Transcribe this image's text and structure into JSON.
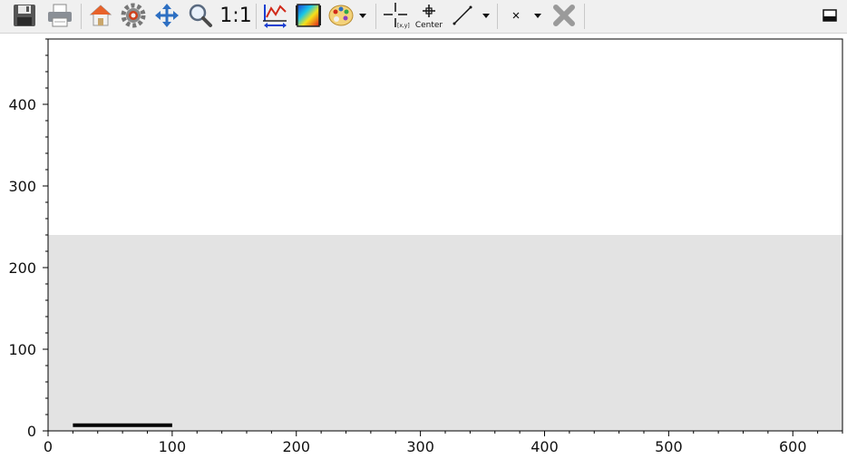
{
  "toolbar": {
    "zoom_ratio_label": "1:1",
    "center_label": "Center",
    "crosshair_coord_label": "[x,y]",
    "icons": [
      "save-icon",
      "print-icon",
      "home-icon",
      "settings-icon",
      "pan-icon",
      "zoom-icon",
      "zoom-ratio",
      "curve-properties-icon",
      "colormap-icon",
      "palette-icon",
      "crosshair-icon",
      "center-icon",
      "line-tool-icon",
      "marker-icon",
      "clear-icon",
      "dock-icon"
    ]
  },
  "chart_data": {
    "type": "image-plot",
    "x_ticks": [
      "0",
      "100",
      "200",
      "300",
      "400",
      "500",
      "600"
    ],
    "y_ticks": [
      "0",
      "100",
      "200",
      "300",
      "400"
    ],
    "xlim": [
      0,
      640
    ],
    "ylim": [
      0,
      480
    ],
    "image_region": {
      "x": [
        0,
        640
      ],
      "y": [
        0,
        240
      ]
    },
    "image_color": "#e3e3e3",
    "segment": {
      "x": [
        20,
        100
      ],
      "y": [
        7,
        7
      ],
      "color": "#000000"
    }
  }
}
